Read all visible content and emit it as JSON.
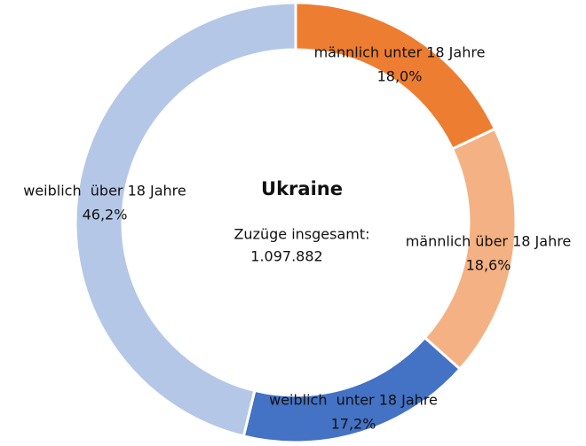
{
  "chart_data": {
    "type": "pie",
    "title": "Ukraine",
    "subtitle": "Zuzüge insgesamt:",
    "total": "1.097.882",
    "categories": [
      "männlich unter 18 Jahre",
      "männlich über 18 Jahre",
      "weiblich  unter 18 Jahre",
      "weiblich  über 18 Jahre"
    ],
    "values": [
      18.0,
      18.6,
      17.2,
      46.2
    ],
    "value_labels": [
      "18,0%",
      "18,6%",
      "17,2%",
      "46,2%"
    ],
    "colors": [
      "#ed7d31",
      "#f4b183",
      "#4472c4",
      "#b4c7e7"
    ]
  }
}
